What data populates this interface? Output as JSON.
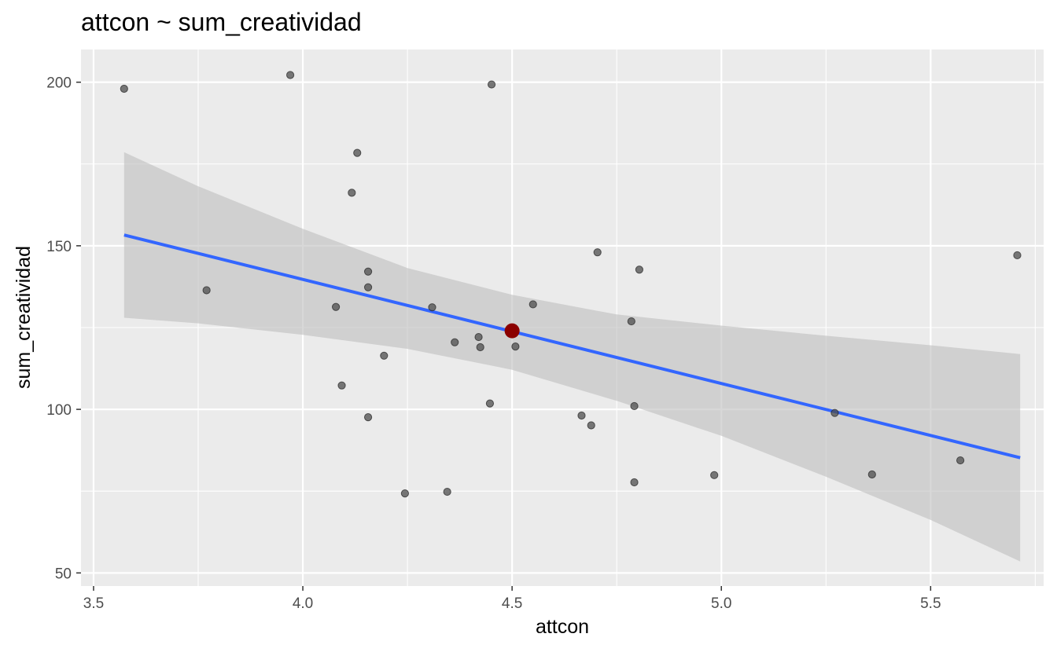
{
  "chart_data": {
    "type": "scatter",
    "title": "attcon ~ sum_creatividad",
    "xlabel": "attcon",
    "ylabel": "sum_creatividad",
    "xlim": [
      3.47,
      5.77
    ],
    "ylim": [
      46,
      210
    ],
    "x_ticks": [
      3.5,
      4.0,
      4.5,
      5.0,
      5.5
    ],
    "x_tick_labels": [
      "3.5",
      "4.0",
      "4.5",
      "5.0",
      "5.5"
    ],
    "y_ticks": [
      50,
      100,
      150,
      200
    ],
    "y_tick_labels": [
      "50",
      "100",
      "150",
      "200"
    ],
    "grid": true,
    "colors": {
      "panel": "#ebebeb",
      "grid": "#ffffff",
      "points": "#4d4d4d",
      "fit_line": "#3366ff",
      "ribbon": "#bebebe",
      "highlight": "#8b0000"
    },
    "points": [
      {
        "x": 3.573,
        "y": 198.0
      },
      {
        "x": 3.97,
        "y": 202.2
      },
      {
        "x": 4.451,
        "y": 199.3
      },
      {
        "x": 4.13,
        "y": 178.4
      },
      {
        "x": 4.117,
        "y": 166.2
      },
      {
        "x": 3.77,
        "y": 136.4
      },
      {
        "x": 4.156,
        "y": 142.1
      },
      {
        "x": 4.156,
        "y": 137.3
      },
      {
        "x": 4.079,
        "y": 131.3
      },
      {
        "x": 4.309,
        "y": 131.2
      },
      {
        "x": 4.55,
        "y": 132.1
      },
      {
        "x": 4.704,
        "y": 148.0
      },
      {
        "x": 4.804,
        "y": 142.7
      },
      {
        "x": 5.707,
        "y": 147.1
      },
      {
        "x": 4.785,
        "y": 126.9
      },
      {
        "x": 4.42,
        "y": 122.1
      },
      {
        "x": 4.363,
        "y": 120.5
      },
      {
        "x": 4.424,
        "y": 119.0
      },
      {
        "x": 4.508,
        "y": 119.2
      },
      {
        "x": 4.194,
        "y": 116.4
      },
      {
        "x": 4.093,
        "y": 107.3
      },
      {
        "x": 4.156,
        "y": 97.6
      },
      {
        "x": 4.447,
        "y": 101.8
      },
      {
        "x": 4.666,
        "y": 98.1
      },
      {
        "x": 4.689,
        "y": 95.1
      },
      {
        "x": 4.792,
        "y": 101.0
      },
      {
        "x": 5.271,
        "y": 98.9
      },
      {
        "x": 4.244,
        "y": 74.3
      },
      {
        "x": 4.345,
        "y": 74.8
      },
      {
        "x": 4.792,
        "y": 77.7
      },
      {
        "x": 4.983,
        "y": 79.9
      },
      {
        "x": 5.36,
        "y": 80.1
      },
      {
        "x": 5.571,
        "y": 84.4
      }
    ],
    "fit_line": {
      "x": [
        3.573,
        5.714
      ],
      "y": [
        153.3,
        85.2
      ]
    },
    "confidence_band": {
      "x": [
        3.573,
        3.75,
        4.0,
        4.25,
        4.5,
        4.75,
        5.0,
        5.25,
        5.5,
        5.714
      ],
      "upper": [
        178.6,
        168.2,
        155.2,
        143.2,
        135.0,
        129.0,
        125.6,
        122.5,
        119.6,
        116.9
      ],
      "lower": [
        128.0,
        126.3,
        122.8,
        118.5,
        112.1,
        102.6,
        91.9,
        79.4,
        66.2,
        53.5
      ]
    },
    "highlight_point": {
      "x": 4.5,
      "y": 124.0
    }
  }
}
